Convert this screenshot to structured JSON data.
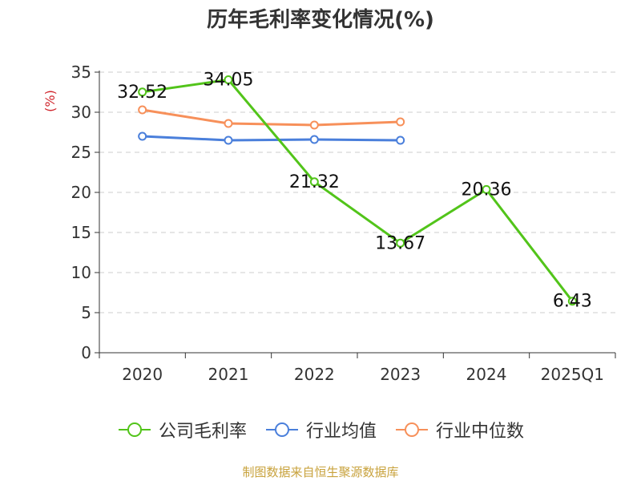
{
  "title": "历年毛利率变化情况(%)",
  "source": "制图数据来自恒生聚源数据库",
  "colors": {
    "gross_margin": "#52c41a",
    "industry_avg": "#4a7fdb",
    "industry_median": "#f7905a",
    "axis": "#333333",
    "grid": "#cccccc",
    "ylabel": "#d0262d"
  },
  "chart_data": {
    "type": "line",
    "title": "历年毛利率变化情况(%)",
    "xlabel": "",
    "ylabel": "(%)",
    "categories": [
      "2020",
      "2021",
      "2022",
      "2023",
      "2024",
      "2025Q1"
    ],
    "ylim": [
      0,
      35
    ],
    "yticks": [
      0,
      5,
      10,
      15,
      20,
      25,
      30,
      35
    ],
    "grid": true,
    "legend": "bottom",
    "series": [
      {
        "name": "公司毛利率",
        "color": "#52c41a",
        "values": [
          32.52,
          34.05,
          21.32,
          13.67,
          20.36,
          6.43
        ],
        "labels": [
          "32.52",
          "34.05",
          "21.32",
          "13.67",
          "20.36",
          "6.43"
        ]
      },
      {
        "name": "行业均值",
        "color": "#4a7fdb",
        "values": [
          27.0,
          26.5,
          26.6,
          26.5,
          null,
          null
        ]
      },
      {
        "name": "行业中位数",
        "color": "#f7905a",
        "values": [
          30.3,
          28.6,
          28.4,
          28.8,
          null,
          null
        ]
      }
    ]
  }
}
